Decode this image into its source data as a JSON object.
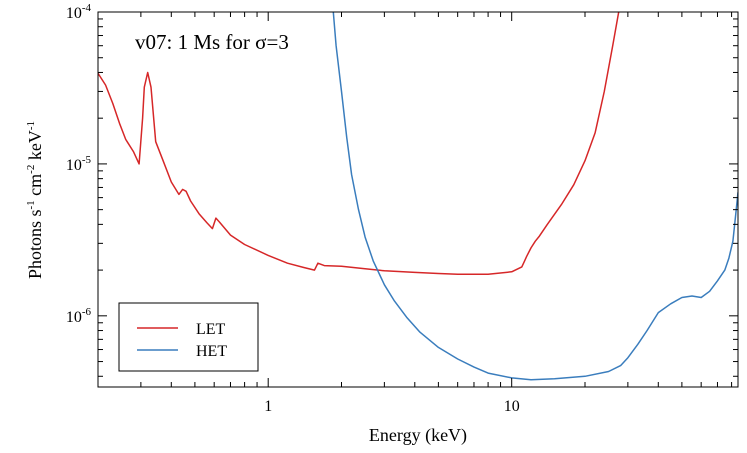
{
  "chart_data": {
    "type": "line",
    "title": "v07: 1 Ms for σ=3",
    "xlabel": "Energy (keV)",
    "ylabel": {
      "base": "Photons s",
      "exp1": "-1",
      "mid": " cm",
      "exp2": "-2",
      "end": " keV",
      "exp3": "-1"
    },
    "x_scale": "log",
    "y_scale": "log",
    "xlim": [
      0.2,
      85
    ],
    "ylim": [
      3.4e-07,
      0.0001
    ],
    "x_ticks": [
      {
        "value": 1,
        "label": "1"
      },
      {
        "value": 10,
        "label": "10"
      }
    ],
    "y_ticks": [
      {
        "value": 1e-06,
        "base": "10",
        "exp": "-6"
      },
      {
        "value": 1e-05,
        "base": "10",
        "exp": "-5"
      },
      {
        "value": 0.0001,
        "base": "10",
        "exp": "-4"
      }
    ],
    "grid": false,
    "legend_position": "bottom-left",
    "series": [
      {
        "name": "LET",
        "color": "#d62728",
        "points": [
          [
            0.2,
            3.95e-05
          ],
          [
            0.215,
            3.3e-05
          ],
          [
            0.23,
            2.5e-05
          ],
          [
            0.245,
            1.85e-05
          ],
          [
            0.26,
            1.45e-05
          ],
          [
            0.28,
            1.2e-05
          ],
          [
            0.295,
            1e-05
          ],
          [
            0.305,
            2e-05
          ],
          [
            0.31,
            3.2e-05
          ],
          [
            0.32,
            4e-05
          ],
          [
            0.33,
            3.2e-05
          ],
          [
            0.345,
            1.4e-05
          ],
          [
            0.37,
            1.05e-05
          ],
          [
            0.4,
            7.6e-06
          ],
          [
            0.43,
            6.3e-06
          ],
          [
            0.445,
            6.8e-06
          ],
          [
            0.46,
            6.6e-06
          ],
          [
            0.48,
            5.7e-06
          ],
          [
            0.52,
            4.7e-06
          ],
          [
            0.56,
            4.1e-06
          ],
          [
            0.59,
            3.75e-06
          ],
          [
            0.61,
            4.4e-06
          ],
          [
            0.63,
            4.15e-06
          ],
          [
            0.7,
            3.4e-06
          ],
          [
            0.8,
            2.95e-06
          ],
          [
            1.0,
            2.5e-06
          ],
          [
            1.2,
            2.22e-06
          ],
          [
            1.4,
            2.08e-06
          ],
          [
            1.55,
            2e-06
          ],
          [
            1.6,
            2.22e-06
          ],
          [
            1.7,
            2.14e-06
          ],
          [
            2.0,
            2.12e-06
          ],
          [
            2.5,
            2.04e-06
          ],
          [
            3.0,
            1.98e-06
          ],
          [
            4.0,
            1.93e-06
          ],
          [
            5.0,
            1.9e-06
          ],
          [
            6.0,
            1.88e-06
          ],
          [
            8.0,
            1.88e-06
          ],
          [
            10.0,
            1.95e-06
          ],
          [
            11.0,
            2.1e-06
          ],
          [
            11.3,
            2.3e-06
          ],
          [
            11.5,
            2.45e-06
          ],
          [
            12.0,
            2.8e-06
          ],
          [
            12.5,
            3.1e-06
          ],
          [
            13.0,
            3.35e-06
          ],
          [
            14.0,
            4e-06
          ],
          [
            16.0,
            5.4e-06
          ],
          [
            18.0,
            7.3e-06
          ],
          [
            20.0,
            1.05e-05
          ],
          [
            22.0,
            1.6e-05
          ],
          [
            24.0,
            3e-05
          ],
          [
            26.0,
            6e-05
          ],
          [
            27.5,
            0.0001
          ]
        ]
      },
      {
        "name": "HET",
        "color": "#3a7dbd",
        "points": [
          [
            1.85,
            0.0001
          ],
          [
            1.9,
            6e-05
          ],
          [
            2.0,
            3e-05
          ],
          [
            2.1,
            1.5e-05
          ],
          [
            2.2,
            8.5e-06
          ],
          [
            2.35,
            5e-06
          ],
          [
            2.5,
            3.3e-06
          ],
          [
            2.7,
            2.3e-06
          ],
          [
            3.0,
            1.6e-06
          ],
          [
            3.3,
            1.25e-06
          ],
          [
            3.7,
            9.8e-07
          ],
          [
            4.2,
            7.8e-07
          ],
          [
            5.0,
            6.2e-07
          ],
          [
            6.0,
            5.2e-07
          ],
          [
            7.0,
            4.6e-07
          ],
          [
            8.0,
            4.2e-07
          ],
          [
            10.0,
            3.9e-07
          ],
          [
            12.0,
            3.8e-07
          ],
          [
            15.0,
            3.85e-07
          ],
          [
            20.0,
            4e-07
          ],
          [
            25.0,
            4.3e-07
          ],
          [
            28.0,
            4.7e-07
          ],
          [
            30.0,
            5.3e-07
          ],
          [
            33.0,
            6.5e-07
          ],
          [
            36.0,
            8e-07
          ],
          [
            40.0,
            1.05e-06
          ],
          [
            45.0,
            1.2e-06
          ],
          [
            50.0,
            1.32e-06
          ],
          [
            55.0,
            1.35e-06
          ],
          [
            60.0,
            1.32e-06
          ],
          [
            65.0,
            1.45e-06
          ],
          [
            70.0,
            1.7e-06
          ],
          [
            75.0,
            2e-06
          ],
          [
            78.0,
            2.4e-06
          ],
          [
            81.0,
            3.1e-06
          ],
          [
            83.0,
            4.5e-06
          ],
          [
            85.0,
            6.5e-06
          ]
        ]
      }
    ]
  }
}
